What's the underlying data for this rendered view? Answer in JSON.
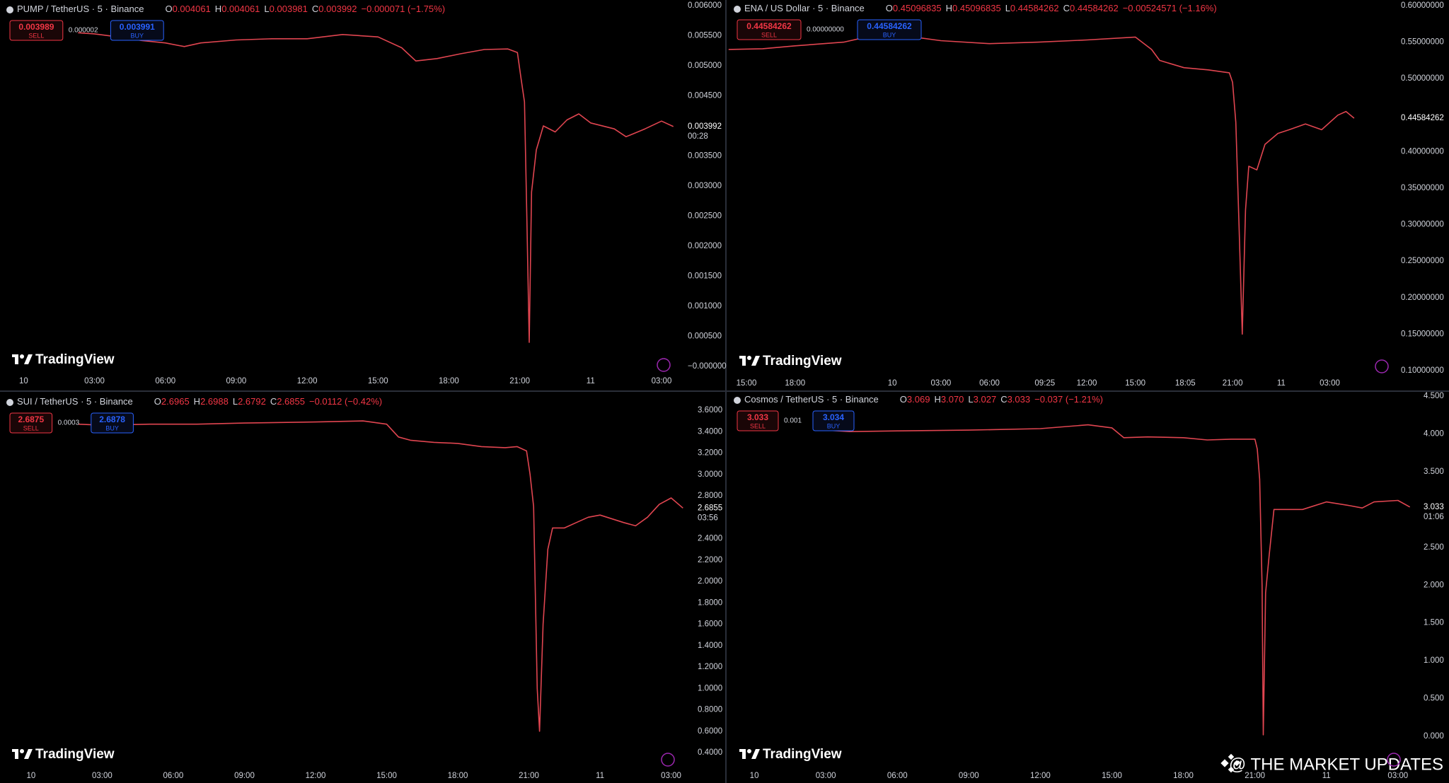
{
  "chart_data": [
    {
      "type": "line",
      "title": "PUMP / TetherUS · 5 · Binance",
      "ohlc": [
        {
          "label": "O",
          "value": "0.004061"
        },
        {
          "label": "H",
          "value": "0.004061"
        },
        {
          "label": "L",
          "value": "0.003981"
        },
        {
          "label": "C",
          "value": "0.003992"
        }
      ],
      "change": "−0.000071 (−1.75%)",
      "sell": {
        "price": "0.003989",
        "label": "SELL"
      },
      "spread": "0.000002",
      "buy": {
        "price": "0.003991",
        "label": "BUY"
      },
      "last_price": "0.003992",
      "countdown": "00:28",
      "logo": "TradingView",
      "color": "#e04550",
      "grid": false,
      "x": [
        2.3,
        3,
        4,
        5,
        6,
        6.8,
        7.5,
        9,
        10.5,
        12,
        13.5,
        15,
        16,
        16.6,
        17.5,
        18.5,
        19.5,
        20.5,
        20.9,
        21.05,
        21.2,
        21.3,
        21.4,
        21.5,
        21.7,
        22,
        22.5,
        23,
        23.5,
        24,
        25,
        25.5,
        26.3,
        27,
        27.5
      ],
      "values": [
        0.00555,
        0.00553,
        0.00548,
        0.00542,
        0.00538,
        0.00532,
        0.00538,
        0.00543,
        0.00545,
        0.00545,
        0.00552,
        0.00548,
        0.0053,
        0.00508,
        0.00512,
        0.0052,
        0.00527,
        0.00528,
        0.00522,
        0.0048,
        0.0044,
        0.0025,
        0.0004,
        0.0029,
        0.0036,
        0.004,
        0.0039,
        0.0041,
        0.0042,
        0.00405,
        0.00395,
        0.00382,
        0.00395,
        0.00408,
        0.00399
      ],
      "xlim": [
        -1,
        27.75
      ],
      "ylim": [
        0,
        0.006
      ],
      "xticks": [
        {
          "value": 0,
          "label": "10"
        },
        {
          "value": 3,
          "label": "03:00"
        },
        {
          "value": 6,
          "label": "06:00"
        },
        {
          "value": 9,
          "label": "09:00"
        },
        {
          "value": 12,
          "label": "12:00"
        },
        {
          "value": 15,
          "label": "15:00"
        },
        {
          "value": 18,
          "label": "18:00"
        },
        {
          "value": 21,
          "label": "21:00"
        },
        {
          "value": 24,
          "label": "11"
        },
        {
          "value": 27,
          "label": "03:00"
        }
      ],
      "yticks": [
        {
          "value": 0.006,
          "label": "0.006000"
        },
        {
          "value": 0.0055,
          "label": "0.005500"
        },
        {
          "value": 0.005,
          "label": "0.005000"
        },
        {
          "value": 0.0045,
          "label": "0.004500"
        },
        {
          "value": 0.0035,
          "label": "0.003500"
        },
        {
          "value": 0.003,
          "label": "0.003000"
        },
        {
          "value": 0.0025,
          "label": "0.002500"
        },
        {
          "value": 0.002,
          "label": "0.002000"
        },
        {
          "value": 0.0015,
          "label": "0.001500"
        },
        {
          "value": 0.001,
          "label": "0.001000"
        },
        {
          "value": 0.0005,
          "label": "0.000500"
        },
        {
          "value": 0,
          "label": "−0.000000"
        }
      ]
    },
    {
      "type": "line",
      "title": "ENA / US Dollar · 5 · Binance",
      "ohlc": [
        {
          "label": "O",
          "value": "0.45096835"
        },
        {
          "label": "H",
          "value": "0.45096835"
        },
        {
          "label": "L",
          "value": "0.44584262"
        },
        {
          "label": "C",
          "value": "0.44584262"
        }
      ],
      "change": "−0.00524571 (−1.16%)",
      "sell": {
        "price": "0.44584262",
        "label": "SELL"
      },
      "spread": "0.00000000",
      "buy": {
        "price": "0.44584262",
        "label": "BUY"
      },
      "last_price": "0.44584262",
      "logo": "TradingView",
      "color": "#e04550",
      "grid": false,
      "x": [
        -10.1,
        -8,
        -6,
        -3,
        -1,
        0,
        1,
        3,
        6,
        9,
        12,
        15,
        16,
        16.5,
        18,
        19.5,
        20.8,
        21,
        21.2,
        21.4,
        21.6,
        21.8,
        22,
        22.5,
        23,
        23.8,
        24.5,
        25.5,
        26.5,
        27.5,
        28,
        28.5
      ],
      "values": [
        0.54,
        0.541,
        0.545,
        0.55,
        0.56,
        0.565,
        0.558,
        0.552,
        0.548,
        0.55,
        0.553,
        0.557,
        0.54,
        0.525,
        0.515,
        0.512,
        0.508,
        0.495,
        0.44,
        0.3,
        0.15,
        0.32,
        0.38,
        0.375,
        0.41,
        0.425,
        0.43,
        0.438,
        0.43,
        0.45,
        0.455,
        0.4458
      ],
      "xlim": [
        -10.18,
        31.17
      ],
      "ylim": [
        0.1,
        0.6
      ],
      "xticks": [
        {
          "value": -9,
          "label": "15:00"
        },
        {
          "value": -6,
          "label": "18:00"
        },
        {
          "value": 0,
          "label": "10"
        },
        {
          "value": 3,
          "label": "03:00"
        },
        {
          "value": 6,
          "label": "06:00"
        },
        {
          "value": 9.417,
          "label": "09:25"
        },
        {
          "value": 12,
          "label": "12:00"
        },
        {
          "value": 15,
          "label": "15:00"
        },
        {
          "value": 18.083,
          "label": "18:05"
        },
        {
          "value": 21,
          "label": "21:00"
        },
        {
          "value": 24,
          "label": "11"
        },
        {
          "value": 27,
          "label": "03:00"
        }
      ],
      "yticks": [
        {
          "value": 0.6,
          "label": "0.60000000"
        },
        {
          "value": 0.55,
          "label": "0.55000000"
        },
        {
          "value": 0.5,
          "label": "0.50000000"
        },
        {
          "value": 0.4,
          "label": "0.40000000"
        },
        {
          "value": 0.35,
          "label": "0.35000000"
        },
        {
          "value": 0.3,
          "label": "0.30000000"
        },
        {
          "value": 0.25,
          "label": "0.25000000"
        },
        {
          "value": 0.2,
          "label": "0.20000000"
        },
        {
          "value": 0.15,
          "label": "0.15000000"
        },
        {
          "value": 0.1,
          "label": "0.10000000"
        }
      ]
    },
    {
      "type": "line",
      "title": "SUI / TetherUS · 5 · Binance",
      "ohlc": [
        {
          "label": "O",
          "value": "2.6965"
        },
        {
          "label": "H",
          "value": "2.6988"
        },
        {
          "label": "L",
          "value": "2.6792"
        },
        {
          "label": "C",
          "value": "2.6855"
        }
      ],
      "change": "−0.0112 (−0.42%)",
      "sell": {
        "price": "2.6875",
        "label": "SELL"
      },
      "spread": "0.0003",
      "buy": {
        "price": "2.6878",
        "label": "BUY"
      },
      "last_price": "2.6855",
      "countdown": "03:56",
      "logo": "TradingView",
      "color": "#e04550",
      "grid": false,
      "x": [
        2,
        3,
        5,
        7,
        9,
        12,
        14,
        15,
        15.5,
        16,
        17,
        18,
        19,
        20,
        20.5,
        20.9,
        21.05,
        21.2,
        21.35,
        21.45,
        21.6,
        21.8,
        22,
        22.5,
        23,
        23.5,
        24,
        25,
        25.5,
        26,
        26.5,
        27,
        27.5
      ],
      "values": [
        3.47,
        3.46,
        3.47,
        3.47,
        3.48,
        3.49,
        3.5,
        3.47,
        3.35,
        3.32,
        3.3,
        3.29,
        3.26,
        3.25,
        3.26,
        3.22,
        3.0,
        2.7,
        1.0,
        0.6,
        1.6,
        2.3,
        2.5,
        2.5,
        2.55,
        2.6,
        2.62,
        2.55,
        2.52,
        2.6,
        2.72,
        2.78,
        2.6855
      ],
      "xlim": [
        -1.31,
        27.52
      ],
      "ylim": [
        0.4,
        3.6
      ],
      "xticks": [
        {
          "value": 0,
          "label": "10"
        },
        {
          "value": 3,
          "label": "03:00"
        },
        {
          "value": 6,
          "label": "06:00"
        },
        {
          "value": 9,
          "label": "09:00"
        },
        {
          "value": 12,
          "label": "12:00"
        },
        {
          "value": 15,
          "label": "15:00"
        },
        {
          "value": 18,
          "label": "18:00"
        },
        {
          "value": 21,
          "label": "21:00"
        },
        {
          "value": 24,
          "label": "11"
        },
        {
          "value": 27,
          "label": "03:00"
        }
      ],
      "yticks": [
        {
          "value": 3.6,
          "label": "3.6000"
        },
        {
          "value": 3.4,
          "label": "3.4000"
        },
        {
          "value": 3.2,
          "label": "3.2000"
        },
        {
          "value": 3,
          "label": "3.0000"
        },
        {
          "value": 2.8,
          "label": "2.8000"
        },
        {
          "value": 2.4,
          "label": "2.4000"
        },
        {
          "value": 2.2,
          "label": "2.2000"
        },
        {
          "value": 2,
          "label": "2.0000"
        },
        {
          "value": 1.8,
          "label": "1.8000"
        },
        {
          "value": 1.6,
          "label": "1.6000"
        },
        {
          "value": 1.4,
          "label": "1.4000"
        },
        {
          "value": 1.2,
          "label": "1.2000"
        },
        {
          "value": 1,
          "label": "1.0000"
        },
        {
          "value": 0.8,
          "label": "0.8000"
        },
        {
          "value": 0.6,
          "label": "0.6000"
        },
        {
          "value": 0.4,
          "label": "0.4000"
        }
      ]
    },
    {
      "type": "line",
      "title": "Cosmos / TetherUS · 5 · Binance",
      "ohlc": [
        {
          "label": "O",
          "value": "3.069"
        },
        {
          "label": "H",
          "value": "3.070"
        },
        {
          "label": "L",
          "value": "3.027"
        },
        {
          "label": "C",
          "value": "3.033"
        }
      ],
      "change": "−0.037 (−1.21%)",
      "sell": {
        "price": "3.033",
        "label": "SELL"
      },
      "spread": "0.001",
      "buy": {
        "price": "3.034",
        "label": "BUY"
      },
      "last_price": "3.033",
      "countdown": "01:06",
      "logo": "TradingView",
      "color": "#e04550",
      "grid": false,
      "x": [
        3,
        4,
        6,
        9,
        12,
        14,
        15,
        15.5,
        16.5,
        18,
        19,
        20,
        21,
        21.1,
        21.2,
        21.3,
        21.35,
        21.45,
        21.6,
        21.8,
        22.3,
        23,
        24,
        25,
        25.5,
        26,
        27,
        27.5
      ],
      "values": [
        4.05,
        4.03,
        4.04,
        4.05,
        4.07,
        4.12,
        4.08,
        3.95,
        3.96,
        3.95,
        3.92,
        3.93,
        3.93,
        3.8,
        3.4,
        2.0,
        0.02,
        1.9,
        2.4,
        3.0,
        3.0,
        3.0,
        3.1,
        3.05,
        3.02,
        3.1,
        3.12,
        3.033
      ],
      "xlim": [
        -1.13,
        27.48
      ],
      "ylim": [
        0,
        4.5
      ],
      "xticks": [
        {
          "value": 0,
          "label": "10"
        },
        {
          "value": 3,
          "label": "03:00"
        },
        {
          "value": 6,
          "label": "06:00"
        },
        {
          "value": 9,
          "label": "09:00"
        },
        {
          "value": 12,
          "label": "12:00"
        },
        {
          "value": 15,
          "label": "15:00"
        },
        {
          "value": 18,
          "label": "18:00"
        },
        {
          "value": 21,
          "label": "21:00"
        },
        {
          "value": 24,
          "label": "11"
        },
        {
          "value": 27,
          "label": "03:00"
        }
      ],
      "yticks": [
        {
          "value": 4.5,
          "label": "4.500"
        },
        {
          "value": 4,
          "label": "4.000"
        },
        {
          "value": 3.5,
          "label": "3.500"
        },
        {
          "value": 2.5,
          "label": "2.500"
        },
        {
          "value": 2,
          "label": "2.000"
        },
        {
          "value": 1.5,
          "label": "1.500"
        },
        {
          "value": 1,
          "label": "1.000"
        },
        {
          "value": 0.5,
          "label": "0.500"
        },
        {
          "value": 0,
          "label": "0.000"
        }
      ]
    }
  ],
  "watermark": "@ THE MARKET UPDATES"
}
